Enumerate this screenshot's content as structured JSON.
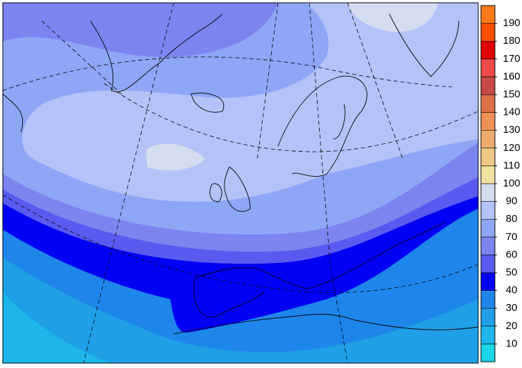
{
  "colorbar": {
    "ticks": [
      10,
      20,
      30,
      40,
      50,
      60,
      70,
      80,
      90,
      100,
      110,
      120,
      130,
      140,
      150,
      160,
      170,
      180,
      190
    ],
    "colors": [
      "#1ad4e8",
      "#1eb6e8",
      "#1e9fe6",
      "#1e86ea",
      "#0000f5",
      "#5a5af0",
      "#7c84f0",
      "#8ea6f6",
      "#b4c2f8",
      "#d4dcef",
      "#f2e2a2",
      "#f0c886",
      "#eeac6c",
      "#ec9054",
      "#de7048",
      "#c84846",
      "#ee4a4a",
      "#e00000",
      "#ff5000",
      "#ff7a18"
    ]
  }
}
